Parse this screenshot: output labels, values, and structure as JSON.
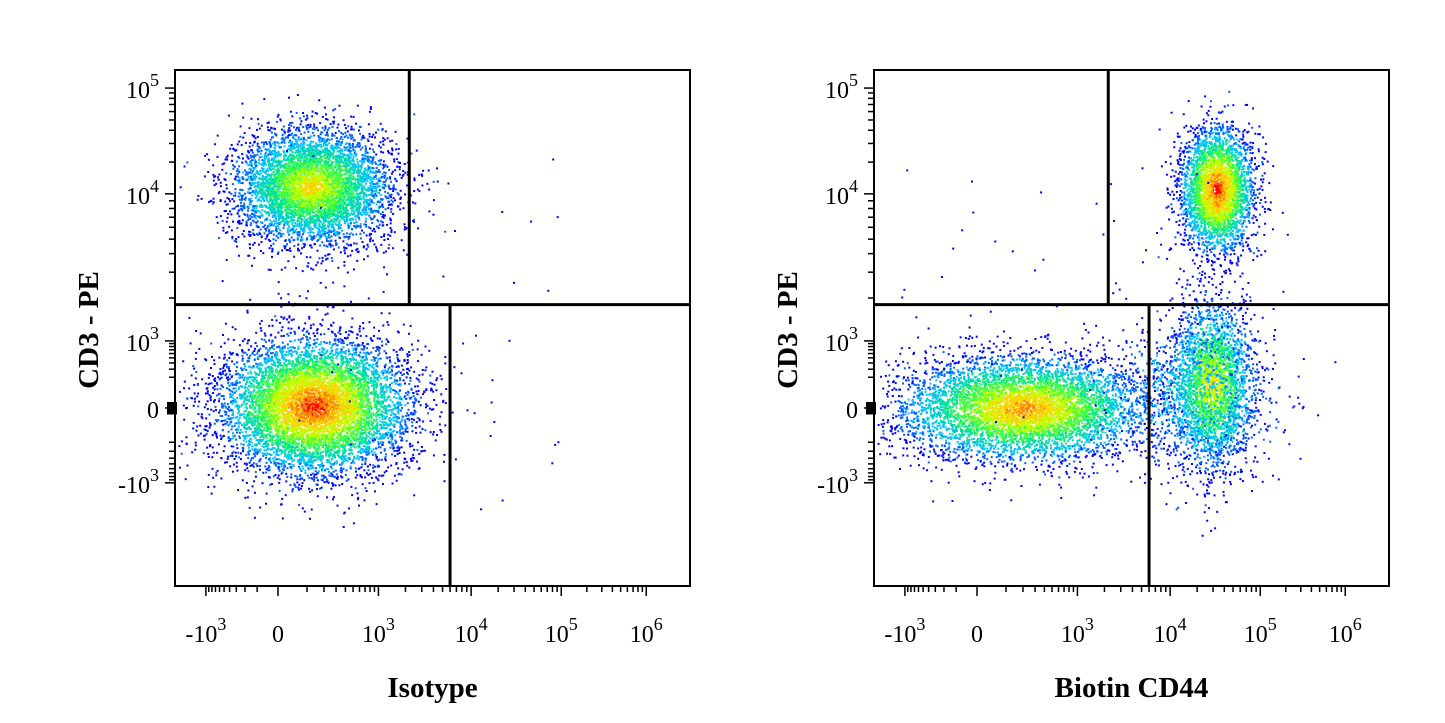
{
  "chart_data": [
    {
      "type": "scatter",
      "style": "flow-cytometry-density-plot",
      "title": "",
      "xlabel": "Isotype",
      "ylabel": "CD3 - PE",
      "x_scale": "biexponential",
      "y_scale": "biexponential",
      "x_ticks": [
        "-10^3",
        "0",
        "10^3",
        "10^4",
        "10^5",
        "10^6"
      ],
      "y_ticks": [
        "10^5",
        "10^4",
        "10^3",
        "0",
        "-10^3"
      ],
      "xlim": [
        -1500,
        2000000
      ],
      "ylim": [
        -3000,
        120000
      ],
      "quadrant_gates": {
        "upper_split_x": 2200,
        "lower_split_x": 6000,
        "split_y": 1800
      },
      "populations": [
        {
          "name": "",
          "center_x": 200,
          "center_y": 9000,
          "events": "dense"
        },
        {
          "name": "",
          "center_x": 200,
          "center_y": 50,
          "events": "dense"
        }
      ],
      "grid": false,
      "legend": "none"
    },
    {
      "type": "scatter",
      "style": "flow-cytometry-density-plot",
      "title": "",
      "xlabel": "Biotin CD44",
      "ylabel": "CD3 - PE",
      "x_scale": "biexponential",
      "y_scale": "biexponential",
      "x_ticks": [
        "-10^3",
        "0",
        "10^3",
        "10^4",
        "10^5",
        "10^6"
      ],
      "y_ticks": [
        "10^5",
        "10^4",
        "10^3",
        "0",
        "-10^3"
      ],
      "xlim": [
        -1500,
        2000000
      ],
      "ylim": [
        -3000,
        120000
      ],
      "quadrant_gates": {
        "upper_split_x": 2200,
        "lower_split_x": 6000,
        "split_y": 1800
      },
      "populations": [
        {
          "name": "",
          "center_x": 30000,
          "center_y": 9000,
          "events": "dense"
        },
        {
          "name": "",
          "center_x": 200,
          "center_y": 0,
          "events": "dense"
        },
        {
          "name": "",
          "center_x": 30000,
          "center_y": 300,
          "events": "moderate"
        }
      ],
      "grid": false,
      "legend": "none"
    }
  ],
  "colors": {
    "low_density": "#0000ff",
    "mid_density": "#00ff80",
    "high_density": "#ff0000",
    "frame": "#000000"
  }
}
